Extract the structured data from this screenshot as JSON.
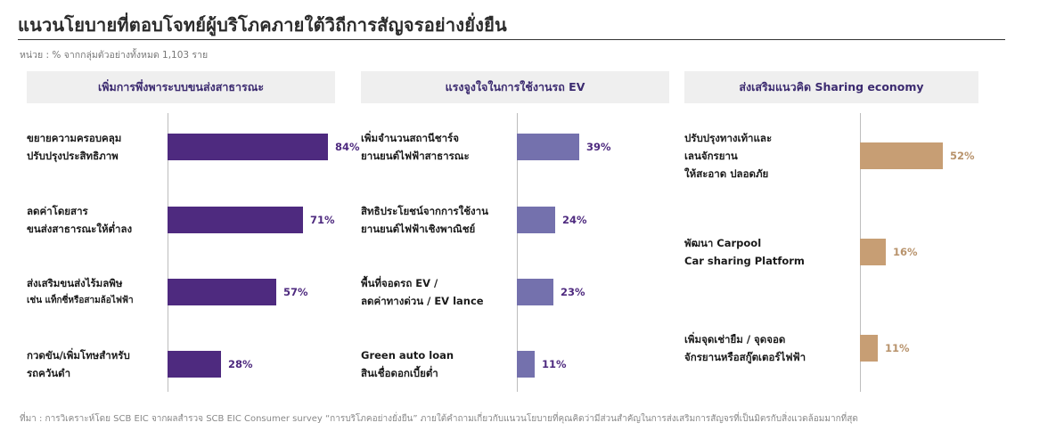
{
  "title": "แนวนโยบายที่ตอบโจทย์ผู้บริโภคภายใต้วิถีการสัญจรอย่างยั่งยืน",
  "unit_note": "หน่วย : % จากกลุ่มตัวอย่างทั้งหมด 1,103 ราย",
  "source": "ที่มา : การวิเคราะห์โดย SCB EIC จากผลสำรวจ SCB EIC Consumer survey “การบริโภคอย่างยั่งยืน” ภายใต้คำถามเกี่ยวกับแนวนโยบายที่คุณคิดว่ามีส่วนสำคัญในการส่งเสริมการสัญจรที่เป็นมิตรกับสิ่งแวดล้อมมากที่สุด",
  "colors": {
    "panel1": "#4e2a7f",
    "panel2": "#7471ad",
    "panel3": "#c79e74",
    "header_text": "#3c2b70"
  },
  "chart_data": [
    {
      "type": "bar",
      "title": "เพิ่มการพึ่งพาระบบขนส่งสาธารณะ",
      "categories": [
        [
          "ขยายความครอบคลุม",
          "ปรับปรุงประสิทธิภาพ"
        ],
        [
          "ลดค่าโดยสาร",
          "ขนส่งสาธารณะให้ต่ำลง"
        ],
        [
          "ส่งเสริมขนส่งไร้มลพิษ",
          "เช่น แท็กซี่หรือสามล้อไฟฟ้า"
        ],
        [
          "กวดขัน/เพิ่มโทษสำหรับ",
          "รถควันดำ"
        ]
      ],
      "values": [
        84,
        71,
        57,
        28
      ],
      "value_labels": [
        "84%",
        "71%",
        "57%",
        "28%"
      ]
    },
    {
      "type": "bar",
      "title": "แรงจูงใจในการใช้งานรถ  EV",
      "categories": [
        [
          "เพิ่มจำนวนสถานีชาร์จ",
          "ยานยนต์ไฟฟ้าสาธารณะ"
        ],
        [
          "สิทธิประโยชน์จากการใช้งาน",
          "ยานยนต์ไฟฟ้าเชิงพาณิชย์"
        ],
        [
          "พื้นที่จอดรถ EV /",
          "ลดค่าทางด่วน / EV lance"
        ],
        [
          "Green auto loan",
          "สินเชื่อดอกเบี้ยต่ำ"
        ]
      ],
      "values": [
        39,
        24,
        23,
        11
      ],
      "value_labels": [
        "39%",
        "24%",
        "23%",
        "11%"
      ]
    },
    {
      "type": "bar",
      "title": "ส่งเสริมแนวคิด  Sharing economy",
      "categories": [
        [
          "ปรับปรุงทางเท้าและ",
          "เลนจักรยาน",
          "ให้สะอาด ปลอดภัย"
        ],
        [
          "พัฒนา Carpool",
          "Car sharing Platform"
        ],
        [
          "เพิ่มจุดเช่ายืม /  จุดจอด",
          "จักรยานหรือสกู๊ตเตอร์ไฟฟ้า"
        ]
      ],
      "values": [
        52,
        16,
        11
      ],
      "value_labels": [
        "52%",
        "16%",
        "11%"
      ]
    }
  ]
}
